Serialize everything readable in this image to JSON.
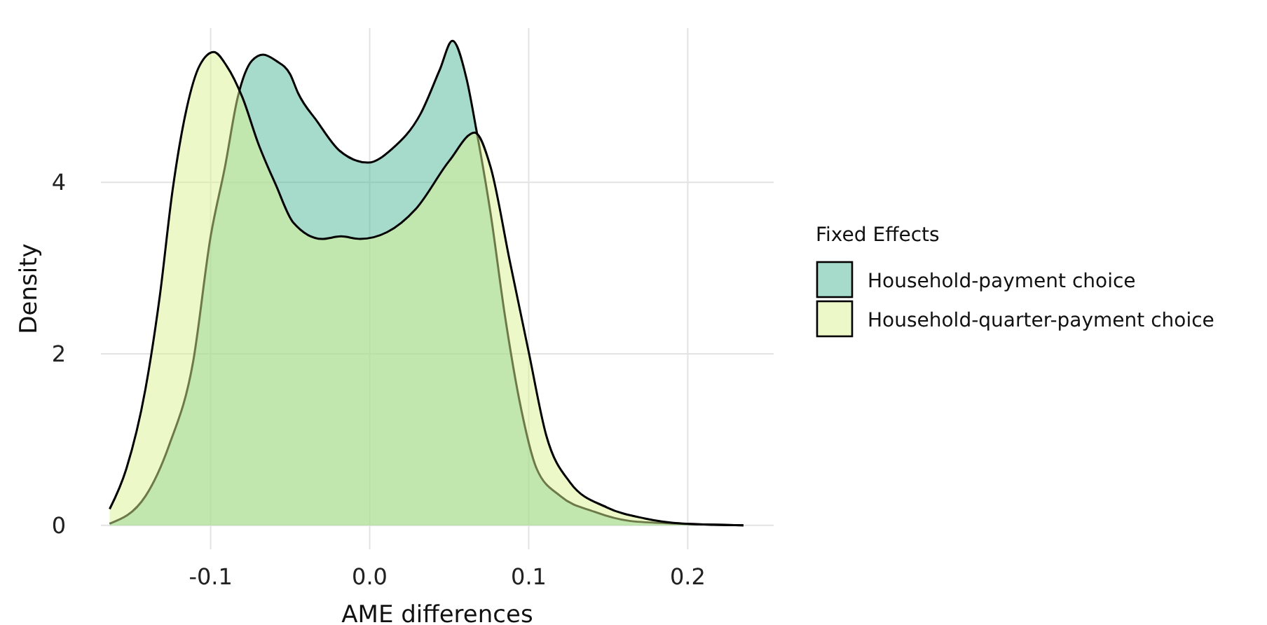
{
  "chart_data": {
    "type": "area",
    "xlabel": "AME differences",
    "ylabel": "Density",
    "legend_title": "Fixed Effects",
    "legend": "right",
    "grid": true,
    "xlim": [
      -0.169,
      0.254
    ],
    "ylim": [
      -0.28,
      5.8
    ],
    "xticks": [
      {
        "value": -0.1,
        "label": "-0.1"
      },
      {
        "value": 0,
        "label": "0.0"
      },
      {
        "value": 0.1,
        "label": "0.1"
      },
      {
        "value": 0.2,
        "label": "0.2"
      }
    ],
    "yticks": [
      0,
      2,
      4
    ],
    "series": [
      {
        "name": "Household-payment choice",
        "color": "#4db797",
        "x": [
          -0.1635,
          -0.141,
          -0.126,
          -0.111,
          -0.1,
          -0.091,
          -0.083,
          -0.074,
          -0.067,
          -0.059,
          -0.05,
          -0.045,
          -0.033,
          -0.019,
          -0.001,
          0.014,
          0.032,
          0.044,
          0.052,
          0.061,
          0.067,
          0.076,
          0.085,
          0.094,
          0.105,
          0.12,
          0.141,
          0.164,
          0.194,
          0.235
        ],
        "values": [
          0.02,
          0.34,
          0.94,
          1.91,
          3.37,
          4.18,
          4.99,
          5.42,
          5.49,
          5.42,
          5.26,
          5.04,
          4.71,
          4.37,
          4.23,
          4.39,
          4.8,
          5.31,
          5.65,
          5.2,
          4.62,
          3.64,
          2.45,
          1.47,
          0.66,
          0.34,
          0.16,
          0.05,
          0.02,
          0
        ]
      },
      {
        "name": "Household-quarter-payment choice",
        "color": "#dbf191",
        "x": [
          -0.1635,
          -0.153,
          -0.141,
          -0.132,
          -0.124,
          -0.115,
          -0.107,
          -0.098,
          -0.09,
          -0.08,
          -0.07,
          -0.059,
          -0.048,
          -0.03,
          -0.018,
          -0.006,
          0.011,
          0.029,
          0.05,
          0.066,
          0.076,
          0.088,
          0.1,
          0.111,
          0.126,
          0.149,
          0.173,
          0.197,
          0.235
        ],
        "values": [
          0.19,
          0.66,
          1.59,
          2.67,
          3.9,
          4.87,
          5.36,
          5.52,
          5.36,
          4.99,
          4.45,
          3.97,
          3.53,
          3.34,
          3.37,
          3.34,
          3.42,
          3.69,
          4.25,
          4.58,
          4.18,
          3.09,
          2.02,
          1.05,
          0.5,
          0.21,
          0.08,
          0.02,
          0
        ]
      }
    ]
  }
}
